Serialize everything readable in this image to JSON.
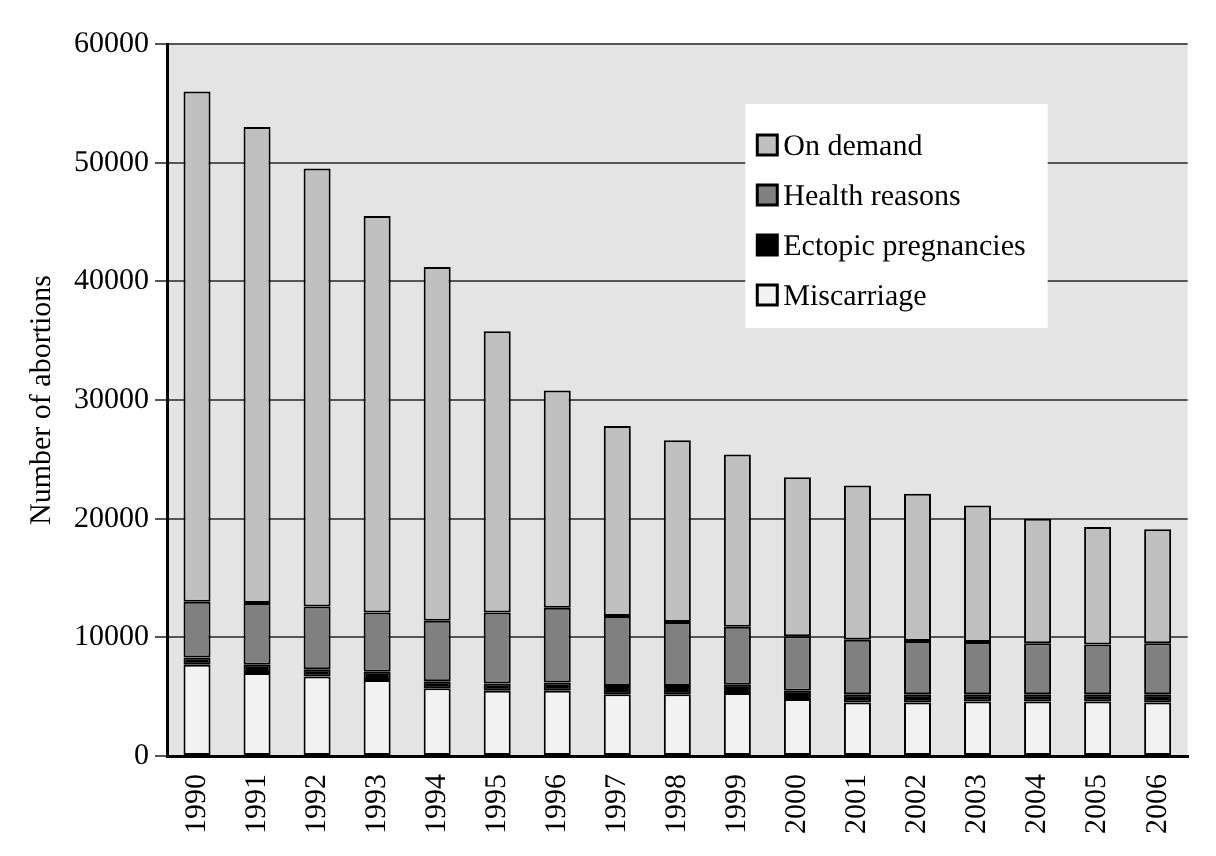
{
  "chart_data": {
    "type": "bar",
    "ylabel": "Number of abortions",
    "categories": [
      "1990",
      "1991",
      "1992",
      "1993",
      "1994",
      "1995",
      "1996",
      "1997",
      "1998",
      "1999",
      "2000",
      "2001",
      "2002",
      "2003",
      "2004",
      "2005",
      "2006"
    ],
    "stacked": true,
    "series": [
      {
        "name": "Miscarriage",
        "color": "#f2f2f2",
        "values": [
          7700,
          7000,
          6700,
          6400,
          5700,
          5500,
          5500,
          5200,
          5200,
          5300,
          4800,
          4500,
          4500,
          4600,
          4600,
          4600,
          4500
        ]
      },
      {
        "name": "Ectopic pregnancies",
        "color": "#000000",
        "values": [
          600,
          700,
          600,
          700,
          600,
          600,
          700,
          700,
          700,
          700,
          700,
          700,
          700,
          600,
          600,
          600,
          700
        ]
      },
      {
        "name": "Health reasons",
        "color": "#808080",
        "values": [
          4700,
          5200,
          5300,
          5000,
          5100,
          6000,
          6300,
          5900,
          5400,
          4900,
          4600,
          4600,
          4500,
          4400,
          4300,
          4200,
          4300
        ]
      },
      {
        "name": "On demand",
        "color": "#c0c0c0",
        "values": [
          43000,
          40100,
          36900,
          33400,
          29800,
          23700,
          18300,
          16000,
          15300,
          14500,
          13400,
          13000,
          12400,
          11500,
          10500,
          9900,
          9600
        ]
      }
    ],
    "ylim": [
      0,
      60000
    ],
    "yticks": [
      0,
      10000,
      20000,
      30000,
      40000,
      50000,
      60000
    ],
    "grid": "y",
    "legend": "top right"
  }
}
